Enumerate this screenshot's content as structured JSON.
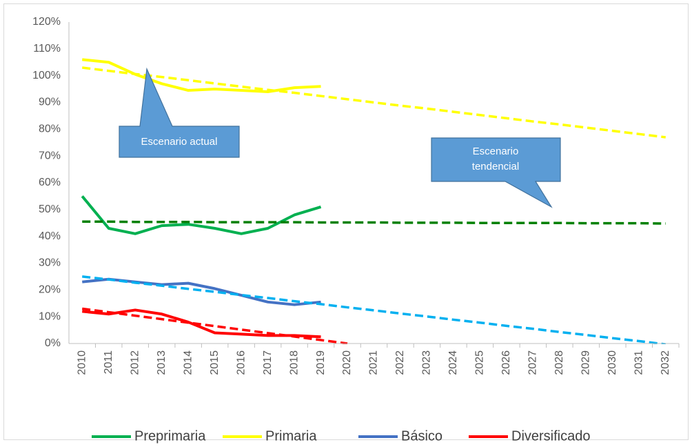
{
  "chart_data": {
    "type": "line",
    "categories": [
      "2010",
      "2011",
      "2012",
      "2013",
      "2014",
      "2015",
      "2016",
      "2017",
      "2018",
      "2019",
      "2020",
      "2021",
      "2022",
      "2023",
      "2024",
      "2025",
      "2026",
      "2027",
      "2028",
      "2029",
      "2030",
      "2031",
      "2032"
    ],
    "ylim": [
      0,
      120
    ],
    "yticks": [
      {
        "value": 0,
        "label": "0%"
      },
      {
        "value": 10,
        "label": "10%"
      },
      {
        "value": 20,
        "label": "20%"
      },
      {
        "value": 30,
        "label": "30%"
      },
      {
        "value": 40,
        "label": "40%"
      },
      {
        "value": 50,
        "label": "50%"
      },
      {
        "value": 60,
        "label": "60%"
      },
      {
        "value": 70,
        "label": "70%"
      },
      {
        "value": 80,
        "label": "80%"
      },
      {
        "value": 90,
        "label": "90%"
      },
      {
        "value": 100,
        "label": "100%"
      },
      {
        "value": 110,
        "label": "110%"
      },
      {
        "value": 120,
        "label": "120%"
      }
    ],
    "grid": false,
    "legend": "bottom",
    "series": [
      {
        "name": "Preprimaria",
        "color": "#00b050",
        "values": [
          55,
          43,
          41,
          44,
          44.5,
          43,
          41,
          43,
          48,
          51,
          null,
          null,
          null,
          null,
          null,
          null,
          null,
          null,
          null,
          null,
          null,
          null,
          null
        ]
      },
      {
        "name": "Primaria",
        "color": "#ffff00",
        "values": [
          106,
          105,
          100.5,
          97,
          94.5,
          95,
          94.5,
          94,
          95.5,
          96,
          null,
          null,
          null,
          null,
          null,
          null,
          null,
          null,
          null,
          null,
          null,
          null,
          null
        ]
      },
      {
        "name": "Básico",
        "color": "#4472c4",
        "values": [
          23,
          24,
          23,
          22,
          22.5,
          20.5,
          18,
          15.5,
          14.5,
          15.5,
          null,
          null,
          null,
          null,
          null,
          null,
          null,
          null,
          null,
          null,
          null,
          null,
          null
        ]
      },
      {
        "name": "Diversificado",
        "color": "#ff0000",
        "values": [
          12,
          11,
          12.5,
          11,
          8,
          4,
          3.5,
          3,
          3,
          2.5,
          null,
          null,
          null,
          null,
          null,
          null,
          null,
          null,
          null,
          null,
          null,
          null,
          null
        ]
      },
      {
        "color": "#ffff00",
        "dashed": true,
        "values": [
          103,
          101.8,
          100.6,
          99.5,
          98.3,
          97.1,
          95.9,
          94.7,
          93.6,
          92.4,
          91.2,
          90,
          88.8,
          87.7,
          86.5,
          85.3,
          84.1,
          82.9,
          81.8,
          80.6,
          79.4,
          78.2,
          77
        ]
      },
      {
        "color": "#008000",
        "dashed": true,
        "values": [
          45.5,
          45.5,
          45.4,
          45.4,
          45.4,
          45.3,
          45.3,
          45.3,
          45.3,
          45.2,
          45.2,
          45.2,
          45.1,
          45.1,
          45.1,
          45,
          45,
          45,
          45,
          44.9,
          44.9,
          44.9,
          44.8
        ]
      },
      {
        "color": "#00b0f0",
        "dashed": true,
        "values": [
          25,
          23.9,
          22.7,
          21.6,
          20.4,
          19.3,
          18.1,
          17,
          15.8,
          14.7,
          13.5,
          12.4,
          11.2,
          10.1,
          8.9,
          7.8,
          6.6,
          5.5,
          4.3,
          3.2,
          2,
          0.9,
          -0.3
        ]
      },
      {
        "color": "#ff0000",
        "dashed": true,
        "values": [
          13,
          11.7,
          10.4,
          9.1,
          7.8,
          6.5,
          5.2,
          3.9,
          2.6,
          1.3,
          0,
          null,
          null,
          null,
          null,
          null,
          null,
          null,
          null,
          null,
          null,
          null,
          null
        ]
      }
    ],
    "annotations": [
      {
        "text": "Escenario actual"
      },
      {
        "lines": [
          "Escenario",
          "tendencial"
        ]
      }
    ]
  }
}
